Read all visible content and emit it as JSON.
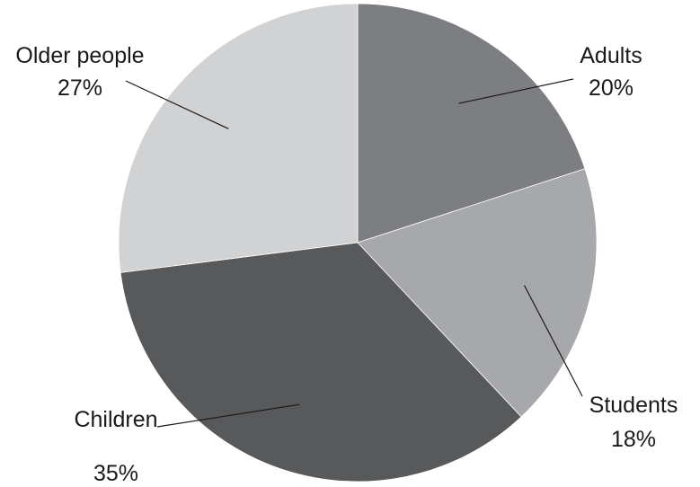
{
  "chart_data": {
    "type": "pie",
    "title": "",
    "slices": [
      {
        "label": "Adults",
        "value": 20,
        "value_label": "20%",
        "color": "#7d7e82"
      },
      {
        "label": "Students",
        "value": 18,
        "value_label": "18%",
        "color": "#a7a8ab"
      },
      {
        "label": "Children",
        "value": 35,
        "value_label": "35%",
        "color": "#58595b"
      },
      {
        "label": "Older people",
        "value": 27,
        "value_label": "27%",
        "color": "#d1d2d4"
      }
    ],
    "start_angle": "12 o'clock",
    "direction": "clockwise",
    "legend": "none"
  }
}
